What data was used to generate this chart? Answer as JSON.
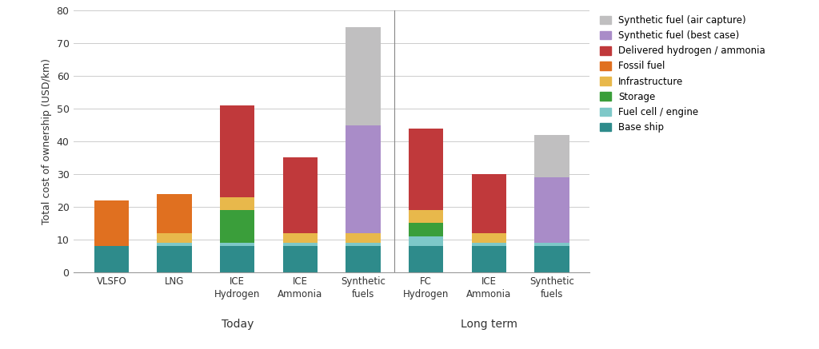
{
  "categories": [
    "VLSFO",
    "LNG",
    "ICE\nHydrogen",
    "ICE\nAmmonia",
    "Synthetic\nfuels",
    "FC\nHydrogen",
    "ICE\nAmmonia",
    "Synthetic\nfuels"
  ],
  "layers": [
    {
      "label": "Base ship",
      "color": "#2e8b8b",
      "values": [
        8,
        8,
        8,
        8,
        8,
        8,
        8,
        8
      ]
    },
    {
      "label": "Fuel cell / engine",
      "color": "#7ec8c8",
      "values": [
        0,
        1,
        1,
        1,
        1,
        3,
        1,
        1
      ]
    },
    {
      "label": "Storage",
      "color": "#3a9e3a",
      "values": [
        0,
        0,
        10,
        0,
        0,
        4,
        0,
        0
      ]
    },
    {
      "label": "Infrastructure",
      "color": "#e8b84b",
      "values": [
        0,
        3,
        4,
        3,
        3,
        4,
        3,
        0
      ]
    },
    {
      "label": "Fossil fuel",
      "color": "#e07020",
      "values": [
        14,
        12,
        0,
        0,
        0,
        0,
        0,
        0
      ]
    },
    {
      "label": "Delivered hydrogen / ammonia",
      "color": "#c0393b",
      "values": [
        0,
        0,
        28,
        23,
        0,
        25,
        18,
        0
      ]
    },
    {
      "label": "Synthetic fuel (best case)",
      "color": "#a98cc8",
      "values": [
        0,
        0,
        0,
        0,
        33,
        0,
        0,
        20
      ]
    },
    {
      "label": "Synthetic fuel (air capture)",
      "color": "#c0bfc0",
      "values": [
        0,
        0,
        0,
        0,
        30,
        0,
        0,
        13
      ]
    }
  ],
  "today_bars": [
    0,
    1,
    2,
    3,
    4
  ],
  "longterm_bars": [
    5,
    6,
    7
  ],
  "today_label": "Today",
  "longterm_label": "Long term",
  "ylabel": "Total cost of ownership (USD/km)",
  "ylim": [
    0,
    80
  ],
  "yticks": [
    0,
    10,
    20,
    30,
    40,
    50,
    60,
    70,
    80
  ],
  "figsize": [
    10.24,
    4.37
  ],
  "dpi": 100,
  "bar_width": 0.55,
  "background_color": "#ffffff",
  "grid_color": "#cccccc"
}
